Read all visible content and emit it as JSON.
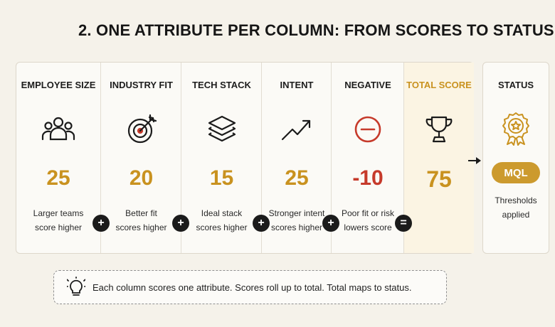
{
  "title": "2. ONE ATTRIBUTE PER COLUMN: FROM SCORES TO STATUS",
  "columns": [
    {
      "header": "EMPLOYEE SIZE",
      "icon": "people-icon",
      "score": "25",
      "description": "Larger teams\nscore higher"
    },
    {
      "header": "INDUSTRY FIT",
      "icon": "target-icon",
      "score": "20",
      "description": "Better fit\nscores higher"
    },
    {
      "header": "TECH STACK",
      "icon": "layers-icon",
      "score": "15",
      "description": "Ideal stack\nscores higher"
    },
    {
      "header": "INTENT",
      "icon": "trend-up-icon",
      "score": "25",
      "description": "Stronger intent\nscores higher"
    },
    {
      "header": "NEGATIVE",
      "icon": "minus-circle-icon",
      "score": "-10",
      "description": "Poor fit or risk\nlowers score"
    }
  ],
  "operators": [
    "+",
    "+",
    "+",
    "+",
    "="
  ],
  "total": {
    "header": "TOTAL SCORE",
    "icon": "trophy-icon",
    "score": "75"
  },
  "status": {
    "header": "STATUS",
    "icon": "award-badge-icon",
    "badge": "MQL",
    "description": "Thresholds\napplied"
  },
  "tip": {
    "icon": "lightbulb-icon",
    "text": "Each column scores one attribute. Scores roll up to total. Total maps to status."
  },
  "colors": {
    "gold": "#c9921f",
    "negative": "#c63a2b",
    "badge": "#cc9a2e",
    "operator": "#1b1b1b"
  }
}
